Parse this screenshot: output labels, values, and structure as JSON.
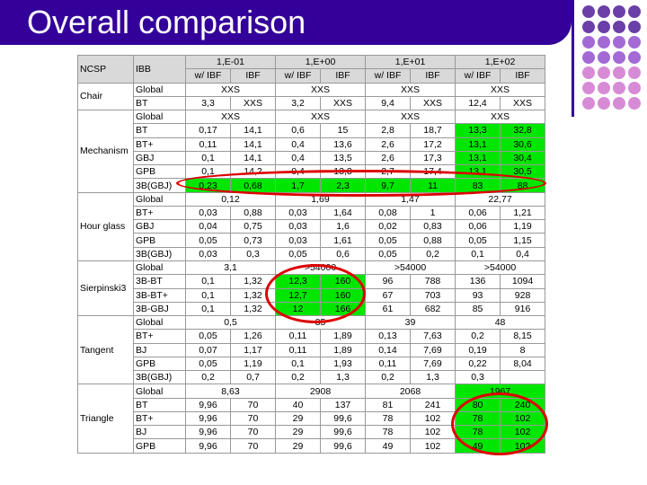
{
  "title": "Overall comparison",
  "header": {
    "c1": "NCSP",
    "c2": "IBB",
    "groups": [
      "1,E-01",
      "1,E+00",
      "1,E+01",
      "1,E+02"
    ],
    "sub": [
      "w/ IBF",
      "IBF"
    ]
  },
  "sections": [
    {
      "name": "Chair",
      "rows": [
        {
          "ibb": "Global",
          "cells": [
            "XXS",
            "",
            "XXS",
            "",
            "XXS",
            "",
            "XXS",
            ""
          ]
        },
        {
          "ibb": "BT",
          "cells": [
            "3,3",
            "XXS",
            "3,2",
            "XXS",
            "9,4",
            "XXS",
            "12,4",
            "XXS"
          ]
        }
      ]
    },
    {
      "name": "Mechanism",
      "rows": [
        {
          "ibb": "Global",
          "cells": [
            "XXS",
            "",
            "XXS",
            "",
            "XXS",
            "",
            "XXS",
            ""
          ]
        },
        {
          "ibb": "BT",
          "cells": [
            "0,17",
            "14,1",
            "0,6",
            "15",
            "2,8",
            "18,7",
            "13,3",
            "32,8"
          ]
        },
        {
          "ibb": "BT+",
          "cells": [
            "0,11",
            "14,1",
            "0,4",
            "13,6",
            "2,6",
            "17,2",
            "13,1",
            "30,6"
          ]
        },
        {
          "ibb": "GBJ",
          "cells": [
            "0,1",
            "14,1",
            "0,4",
            "13,5",
            "2,6",
            "17,3",
            "13,1",
            "30,4"
          ]
        },
        {
          "ibb": "GPB",
          "cells": [
            "0,1",
            "14,2",
            "0,4",
            "13,3",
            "2,7",
            "17,4",
            "13,1",
            "30,5"
          ]
        },
        {
          "ibb": "3B(GBJ)",
          "cells": [
            "0,23",
            "0,68",
            "1,7",
            "2,3",
            "9,7",
            "11",
            "83",
            "88"
          ]
        }
      ]
    },
    {
      "name": "Hour glass",
      "rows": [
        {
          "ibb": "Global",
          "cells": [
            "0,12",
            "",
            "1,69",
            "",
            "1,47",
            "",
            "22,77",
            ""
          ]
        },
        {
          "ibb": "BT+",
          "cells": [
            "0,03",
            "0,88",
            "0,03",
            "1,64",
            "0,08",
            "1",
            "0,06",
            "1,21"
          ]
        },
        {
          "ibb": "GBJ",
          "cells": [
            "0,04",
            "0,75",
            "0,03",
            "1,6",
            "0,02",
            "0,83",
            "0,06",
            "1,19"
          ]
        },
        {
          "ibb": "GPB",
          "cells": [
            "0,05",
            "0,73",
            "0,03",
            "1,61",
            "0,05",
            "0,88",
            "0,05",
            "1,15"
          ]
        },
        {
          "ibb": "3B(GBJ)",
          "cells": [
            "0,03",
            "0,3",
            "0,05",
            "0,6",
            "0,05",
            "0,2",
            "0,1",
            "0,4"
          ]
        }
      ]
    },
    {
      "name": "Sierpinski3",
      "rows": [
        {
          "ibb": "Global",
          "cells": [
            "3,1",
            "",
            ">54000",
            "",
            ">54000",
            "",
            ">54000",
            ""
          ]
        },
        {
          "ibb": "3B-BT",
          "cells": [
            "0,1",
            "1,32",
            "12,3",
            "160",
            "96",
            "788",
            "136",
            "1094"
          ]
        },
        {
          "ibb": "3B-BT+",
          "cells": [
            "0,1",
            "1,32",
            "12,7",
            "160",
            "67",
            "703",
            "93",
            "928"
          ]
        },
        {
          "ibb": "3B-GBJ",
          "cells": [
            "0,1",
            "1,32",
            "12",
            "166",
            "61",
            "682",
            "85",
            "916"
          ]
        }
      ]
    },
    {
      "name": "Tangent",
      "rows": [
        {
          "ibb": "Global",
          "cells": [
            "0,5",
            "",
            "35",
            "",
            "39",
            "",
            "48",
            ""
          ]
        },
        {
          "ibb": "BT+",
          "cells": [
            "0,05",
            "1,26",
            "0,11",
            "1,89",
            "0,13",
            "7,63",
            "0,2",
            "8,15"
          ]
        },
        {
          "ibb": "BJ",
          "cells": [
            "0,07",
            "1,17",
            "0,11",
            "1,89",
            "0,14",
            "7,69",
            "0,19",
            "8"
          ]
        },
        {
          "ibb": "GPB",
          "cells": [
            "0,05",
            "1,19",
            "0,1",
            "1,93",
            "0,11",
            "7,69",
            "0,22",
            "8,04"
          ]
        },
        {
          "ibb": "3B(GBJ)",
          "cells": [
            "0,2",
            "0,7",
            "0,2",
            "1,3",
            "0,2",
            "1,3",
            "0,3",
            ""
          ]
        }
      ]
    },
    {
      "name": "Triangle",
      "rows": [
        {
          "ibb": "Global",
          "cells": [
            "8,63",
            "",
            "2908",
            "",
            "2068",
            "",
            "1967",
            ""
          ]
        },
        {
          "ibb": "BT",
          "cells": [
            "9,96",
            "70",
            "40",
            "137",
            "81",
            "241",
            "80",
            "240"
          ]
        },
        {
          "ibb": "BT+",
          "cells": [
            "9,96",
            "70",
            "29",
            "99,6",
            "78",
            "102",
            "78",
            "102"
          ]
        },
        {
          "ibb": "BJ",
          "cells": [
            "9,96",
            "70",
            "29",
            "99,6",
            "78",
            "102",
            "78",
            "102"
          ]
        },
        {
          "ibb": "GPB",
          "cells": [
            "9,96",
            "70",
            "29",
            "99,6",
            "49",
            "102",
            "49",
            "102"
          ]
        }
      ]
    }
  ],
  "colors": {
    "title_bar": "#330099",
    "highlight_green": "#00e600",
    "highlight_circle": "#dd0000",
    "dot_dark": "#6a3fa8",
    "dot_mid": "#a36ad6",
    "dot_light": "#d78bd6"
  }
}
